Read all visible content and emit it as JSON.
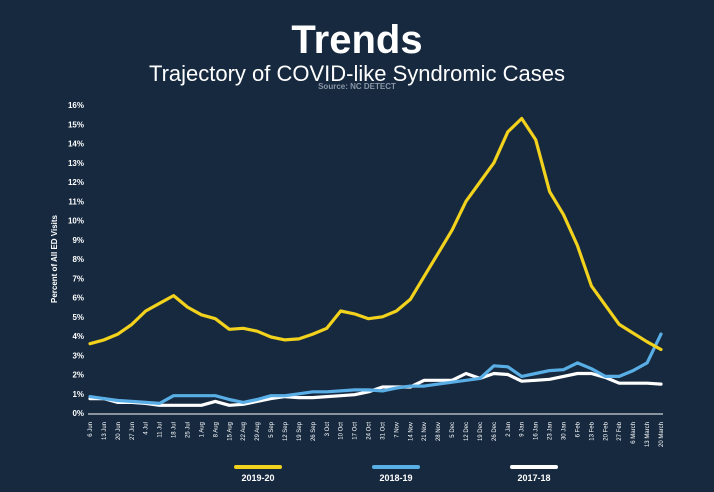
{
  "header": {
    "title": "Trends",
    "subtitle": "Trajectory of COVID-like Syndromic Cases",
    "source": "Source: NC DETECT"
  },
  "colors": {
    "background": "#16293f",
    "series_2019_20": "#f2d21c",
    "series_2018_19": "#5aaee6",
    "series_2017_18": "#ffffff"
  },
  "chart_data": {
    "type": "line",
    "title": "",
    "xlabel": "",
    "ylabel": "Percent of All ED Visits",
    "ylim": [
      0,
      16
    ],
    "y_ticks": [
      "0%",
      "1%",
      "2%",
      "3%",
      "4%",
      "5%",
      "6%",
      "7%",
      "8%",
      "9%",
      "10%",
      "11%",
      "12%",
      "13%",
      "14%",
      "15%",
      "16%"
    ],
    "grid": false,
    "legend_position": "bottom",
    "categories": [
      "6 Jun",
      "13 Jun",
      "20 Jun",
      "27 Jun",
      "4 Jul",
      "11 Jul",
      "18 Jul",
      "25 Jul",
      "1 Aug",
      "8 Aug",
      "15 Aug",
      "22 Aug",
      "29 Aug",
      "5 Sep",
      "12 Sep",
      "19 Sep",
      "26 Sep",
      "3 Oct",
      "10 Oct",
      "17 Oct",
      "24 Oct",
      "31 Oct",
      "7 Nov",
      "14 Nov",
      "21 Nov",
      "28 Nov",
      "5 Dec",
      "12 Dec",
      "19 Dec",
      "26 Dec",
      "2 Jan",
      "9 Jan",
      "16 Jan",
      "23 Jan",
      "30 Jan",
      "6 Feb",
      "13 Feb",
      "20 Feb",
      "27 Feb",
      "6 March",
      "13 March",
      "20 March"
    ],
    "series": [
      {
        "name": "2019-20",
        "color": "#f2d21c",
        "values": [
          3.6,
          3.8,
          4.1,
          4.6,
          5.3,
          5.7,
          6.1,
          5.5,
          5.1,
          4.9,
          4.35,
          4.4,
          4.25,
          3.95,
          3.8,
          3.85,
          4.1,
          4.4,
          5.3,
          5.15,
          4.9,
          5.0,
          5.3,
          5.9,
          7.1,
          8.3,
          9.5,
          11.0,
          12.0,
          13.0,
          14.6,
          15.3,
          14.2,
          11.5,
          10.3,
          8.7,
          6.6,
          5.6,
          4.6,
          4.15,
          3.7,
          3.3
        ]
      },
      {
        "name": "2018-19",
        "color": "#5aaee6",
        "values": [
          0.85,
          0.75,
          0.65,
          0.6,
          0.55,
          0.5,
          0.9,
          0.9,
          0.9,
          0.9,
          0.7,
          0.55,
          0.7,
          0.9,
          0.9,
          1.0,
          1.1,
          1.1,
          1.15,
          1.2,
          1.2,
          1.15,
          1.3,
          1.4,
          1.4,
          1.5,
          1.6,
          1.7,
          1.8,
          2.45,
          2.4,
          1.9,
          2.05,
          2.2,
          2.25,
          2.6,
          2.3,
          1.9,
          1.9,
          2.2,
          2.6,
          4.1
        ]
      },
      {
        "name": "2017-18",
        "color": "#ffffff",
        "values": [
          0.75,
          0.75,
          0.55,
          0.55,
          0.5,
          0.4,
          0.4,
          0.4,
          0.4,
          0.6,
          0.4,
          0.45,
          0.6,
          0.75,
          0.85,
          0.8,
          0.8,
          0.85,
          0.9,
          0.95,
          1.1,
          1.35,
          1.35,
          1.35,
          1.7,
          1.7,
          1.7,
          2.05,
          1.8,
          2.05,
          2.0,
          1.65,
          1.7,
          1.75,
          1.9,
          2.05,
          2.05,
          1.85,
          1.55,
          1.55,
          1.55,
          1.5
        ]
      }
    ]
  }
}
